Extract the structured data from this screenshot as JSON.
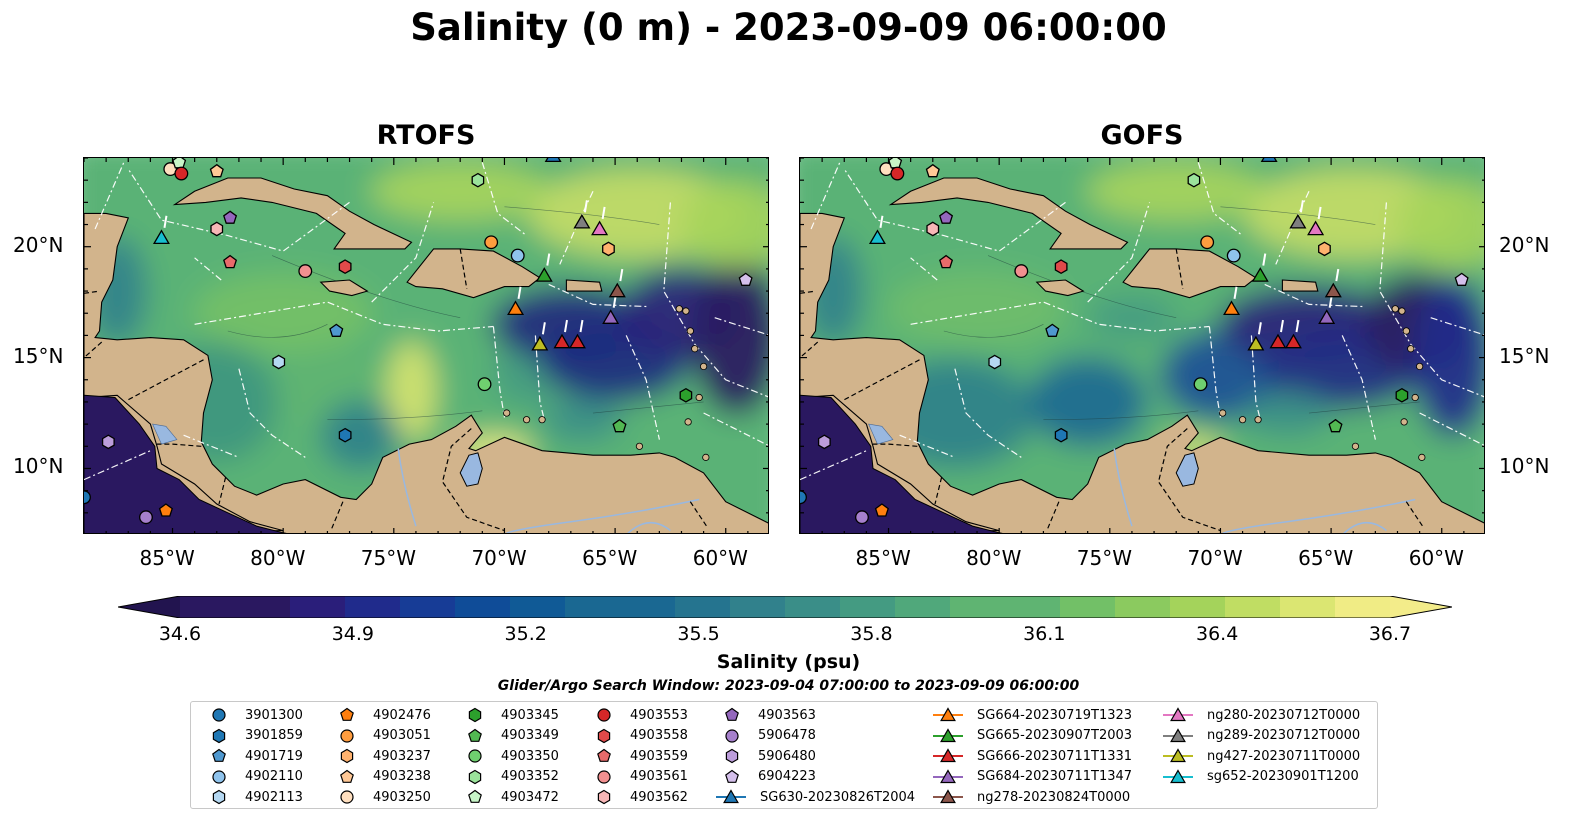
{
  "title": "Salinity (0 m) - 2023-09-09 06:00:00",
  "panels": [
    {
      "title": "RTOFS",
      "key": "rtofs"
    },
    {
      "title": "GOFS",
      "key": "gofs"
    }
  ],
  "x_ticks": [
    {
      "lon": -85,
      "label": "85°W"
    },
    {
      "lon": -80,
      "label": "80°W"
    },
    {
      "lon": -75,
      "label": "75°W"
    },
    {
      "lon": -70,
      "label": "70°W"
    },
    {
      "lon": -65,
      "label": "65°W"
    },
    {
      "lon": -60,
      "label": "60°W"
    }
  ],
  "y_ticks": [
    {
      "lat": 20,
      "label": "20°N"
    },
    {
      "lat": 15,
      "label": "15°N"
    },
    {
      "lat": 10,
      "label": "10°N"
    }
  ],
  "map_extent": {
    "lon": [
      -89,
      -58
    ],
    "lat": [
      7,
      24
    ]
  },
  "colorbar": {
    "label": "Salinity (psu)",
    "min": 34.6,
    "max": 36.7,
    "ticks": [
      "34.6",
      "34.9",
      "35.2",
      "35.5",
      "35.8",
      "36.1",
      "36.4",
      "36.7"
    ],
    "extend": "both",
    "colormap": "haline"
  },
  "search_window": "Glider/Argo Search Window: 2023-09-04 07:00:00 to 2023-09-09 06:00:00",
  "colors": {
    "land": "#d2b48c",
    "lake": "#99b8e0",
    "border": "#000000"
  },
  "floats": [
    {
      "id": "3901300",
      "marker": "circle",
      "color": "#1f77b4",
      "lon": -89.0,
      "lat": 8.7
    },
    {
      "id": "3901859",
      "marker": "hexagon",
      "color": "#1f77b4",
      "lon": -77.2,
      "lat": 11.5
    },
    {
      "id": "4901719",
      "marker": "pentagon",
      "color": "#4f98cf",
      "lon": -77.6,
      "lat": 16.2
    },
    {
      "id": "4902110",
      "marker": "circle",
      "color": "#8fc3ec",
      "lon": -69.4,
      "lat": 19.6
    },
    {
      "id": "4902113",
      "marker": "hexagon",
      "color": "#b5d8f2",
      "lon": -80.2,
      "lat": 14.8
    },
    {
      "id": "4902476",
      "marker": "pentagon",
      "color": "#ff7f0e",
      "lon": -85.3,
      "lat": 8.1
    },
    {
      "id": "4903051",
      "marker": "circle",
      "color": "#ff9d3f",
      "lon": -70.6,
      "lat": 20.2
    },
    {
      "id": "4903237",
      "marker": "hexagon",
      "color": "#ffb26e",
      "lon": -65.3,
      "lat": 19.9
    },
    {
      "id": "4903238",
      "marker": "pentagon",
      "color": "#ffc896",
      "lon": -83.0,
      "lat": 23.4
    },
    {
      "id": "4903250",
      "marker": "circle",
      "color": "#ffdfbf",
      "lon": -85.1,
      "lat": 23.5
    },
    {
      "id": "4903345",
      "marker": "hexagon",
      "color": "#2ca02c",
      "lon": -61.8,
      "lat": 13.3
    },
    {
      "id": "4903349",
      "marker": "pentagon",
      "color": "#52b852",
      "lon": -64.8,
      "lat": 11.9
    },
    {
      "id": "4903350",
      "marker": "circle",
      "color": "#6fcf6f",
      "lon": -70.9,
      "lat": 13.8
    },
    {
      "id": "4903352",
      "marker": "hexagon",
      "color": "#9be39b",
      "lon": -71.2,
      "lat": 23.0
    },
    {
      "id": "4903472",
      "marker": "pentagon",
      "color": "#c8f5c8",
      "lon": -84.7,
      "lat": 23.8
    },
    {
      "id": "4903553",
      "marker": "circle",
      "color": "#d62728",
      "lon": -84.6,
      "lat": 23.3
    },
    {
      "id": "4903558",
      "marker": "hexagon",
      "color": "#e04a4a",
      "lon": -77.2,
      "lat": 19.1
    },
    {
      "id": "4903559",
      "marker": "pentagon",
      "color": "#e86b6b",
      "lon": -82.4,
      "lat": 19.3
    },
    {
      "id": "4903561",
      "marker": "circle",
      "color": "#f29090",
      "lon": -79.0,
      "lat": 18.9
    },
    {
      "id": "4903562",
      "marker": "hexagon",
      "color": "#f7b7b7",
      "lon": -83.0,
      "lat": 20.8
    },
    {
      "id": "4903563",
      "marker": "pentagon",
      "color": "#9467bd",
      "lon": -82.4,
      "lat": 21.3
    },
    {
      "id": "5906478",
      "marker": "circle",
      "color": "#a680cc",
      "lon": -86.2,
      "lat": 7.8
    },
    {
      "id": "5906480",
      "marker": "hexagon",
      "color": "#bc9ddb",
      "lon": -87.9,
      "lat": 11.2
    },
    {
      "id": "6904223",
      "marker": "pentagon",
      "color": "#d4bfeb",
      "lon": -59.1,
      "lat": 18.5
    }
  ],
  "gliders": [
    {
      "id": "SG630-20230826T2004",
      "color": "#1f77b4",
      "lon": -67.8,
      "lat": 24.1
    },
    {
      "id": "SG664-20230719T1323",
      "color": "#ff7f0e",
      "lon": -69.5,
      "lat": 17.2
    },
    {
      "id": "SG665-20230907T2003",
      "color": "#2ca02c",
      "lon": -68.2,
      "lat": 18.7
    },
    {
      "id": "SG666-20230711T1331",
      "color": "#d62728",
      "lon": -66.7,
      "lat": 15.7
    },
    {
      "id": "SG684-20230711T1347",
      "color": "#9467bd",
      "lon": -65.2,
      "lat": 16.8
    },
    {
      "id": "ng278-20230824T0000",
      "color": "#8c564b",
      "lon": -64.9,
      "lat": 18.0
    },
    {
      "id": "ng280-20230712T0000",
      "color": "#e377c2",
      "lon": -65.7,
      "lat": 20.8
    },
    {
      "id": "ng289-20230712T0000",
      "color": "#7f7f7f",
      "lon": -66.5,
      "lat": 21.1
    },
    {
      "id": "ng427-20230711T0000",
      "color": "#bcbd22",
      "lon": -68.4,
      "lat": 15.6
    },
    {
      "id": "sg652-20230901T1200",
      "color": "#17becf",
      "lon": -85.5,
      "lat": 20.4
    },
    {
      "id": "extra-glider",
      "color": "#d62728",
      "lon": -67.4,
      "lat": 15.7
    }
  ]
}
